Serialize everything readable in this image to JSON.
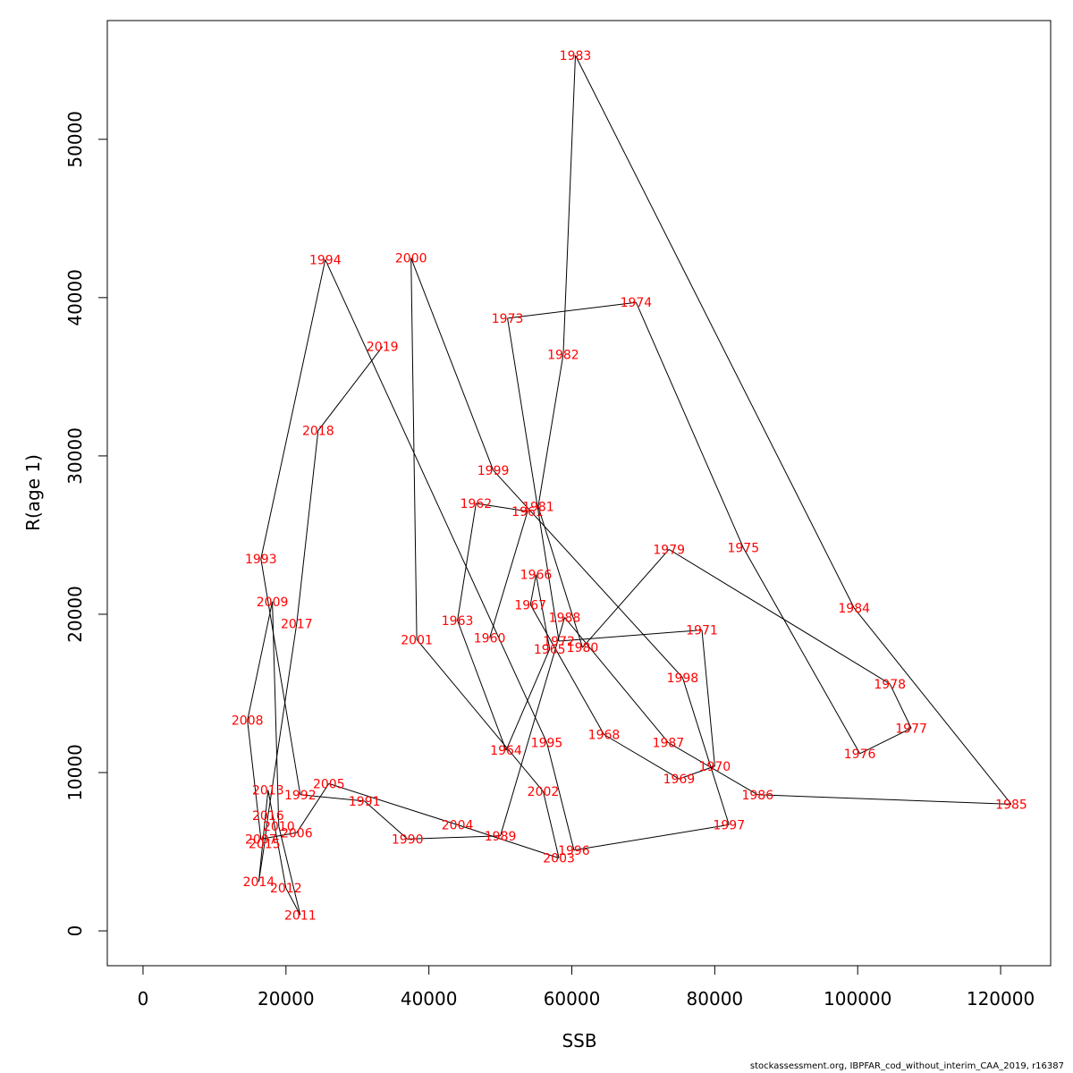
{
  "chart_data": {
    "type": "line",
    "title": "",
    "xlabel": "SSB",
    "ylabel": "R(age 1)",
    "xlim": [
      -5000,
      127000
    ],
    "ylim": [
      -2200,
      57500
    ],
    "xticks": [
      0,
      20000,
      40000,
      60000,
      80000,
      100000,
      120000
    ],
    "yticks": [
      0,
      10000,
      20000,
      30000,
      40000,
      50000
    ],
    "grid": false,
    "legend": "none",
    "colors": {
      "line": "#000000",
      "labels": "#ff0000"
    },
    "points": [
      {
        "year": "1960",
        "x": 48500,
        "y": 18500
      },
      {
        "year": "1961",
        "x": 53800,
        "y": 26500
      },
      {
        "year": "1962",
        "x": 46600,
        "y": 27000
      },
      {
        "year": "1963",
        "x": 44000,
        "y": 19600
      },
      {
        "year": "1964",
        "x": 50800,
        "y": 11400
      },
      {
        "year": "1965",
        "x": 56900,
        "y": 17800
      },
      {
        "year": "1966",
        "x": 55000,
        "y": 22500
      },
      {
        "year": "1967",
        "x": 54200,
        "y": 20600
      },
      {
        "year": "1968",
        "x": 64500,
        "y": 12400
      },
      {
        "year": "1969",
        "x": 75000,
        "y": 9600
      },
      {
        "year": "1970",
        "x": 80000,
        "y": 10400
      },
      {
        "year": "1971",
        "x": 78200,
        "y": 19000
      },
      {
        "year": "1972",
        "x": 58200,
        "y": 18300
      },
      {
        "year": "1973",
        "x": 51000,
        "y": 38700
      },
      {
        "year": "1974",
        "x": 69000,
        "y": 39700
      },
      {
        "year": "1975",
        "x": 84000,
        "y": 24200
      },
      {
        "year": "1976",
        "x": 100300,
        "y": 11200
      },
      {
        "year": "1977",
        "x": 107500,
        "y": 12800
      },
      {
        "year": "1978",
        "x": 104500,
        "y": 15600
      },
      {
        "year": "1979",
        "x": 73600,
        "y": 24100
      },
      {
        "year": "1980",
        "x": 61500,
        "y": 17900
      },
      {
        "year": "1981",
        "x": 55300,
        "y": 26800
      },
      {
        "year": "1982",
        "x": 58800,
        "y": 36400
      },
      {
        "year": "1983",
        "x": 60500,
        "y": 55300
      },
      {
        "year": "1984",
        "x": 99500,
        "y": 20400
      },
      {
        "year": "1985",
        "x": 121500,
        "y": 8000
      },
      {
        "year": "1986",
        "x": 86000,
        "y": 8600
      },
      {
        "year": "1987",
        "x": 73500,
        "y": 11900
      },
      {
        "year": "1988",
        "x": 59000,
        "y": 19800
      },
      {
        "year": "1989",
        "x": 50000,
        "y": 6000
      },
      {
        "year": "1990",
        "x": 37000,
        "y": 5800
      },
      {
        "year": "1991",
        "x": 31000,
        "y": 8200
      },
      {
        "year": "1992",
        "x": 22000,
        "y": 8600
      },
      {
        "year": "1993",
        "x": 16500,
        "y": 23500
      },
      {
        "year": "1994",
        "x": 25500,
        "y": 42400
      },
      {
        "year": "1995",
        "x": 56500,
        "y": 11900
      },
      {
        "year": "1996",
        "x": 60300,
        "y": 5100
      },
      {
        "year": "1997",
        "x": 82000,
        "y": 6700
      },
      {
        "year": "1998",
        "x": 75500,
        "y": 16000
      },
      {
        "year": "1999",
        "x": 49000,
        "y": 29100
      },
      {
        "year": "2000",
        "x": 37500,
        "y": 42500
      },
      {
        "year": "2001",
        "x": 38300,
        "y": 18400
      },
      {
        "year": "2002",
        "x": 56000,
        "y": 8800
      },
      {
        "year": "2003",
        "x": 58200,
        "y": 4600
      },
      {
        "year": "2004",
        "x": 44000,
        "y": 6700
      },
      {
        "year": "2005",
        "x": 26000,
        "y": 9300
      },
      {
        "year": "2006",
        "x": 21500,
        "y": 6200
      },
      {
        "year": "2007",
        "x": 16500,
        "y": 5800
      },
      {
        "year": "2008",
        "x": 14600,
        "y": 13300
      },
      {
        "year": "2009",
        "x": 18100,
        "y": 20800
      },
      {
        "year": "2010",
        "x": 19000,
        "y": 6600
      },
      {
        "year": "2011",
        "x": 22000,
        "y": 1000
      },
      {
        "year": "2012",
        "x": 20000,
        "y": 2700
      },
      {
        "year": "2013",
        "x": 17500,
        "y": 8900
      },
      {
        "year": "2014",
        "x": 16200,
        "y": 3100
      },
      {
        "year": "2015",
        "x": 17000,
        "y": 5500
      },
      {
        "year": "2016",
        "x": 17500,
        "y": 7300
      },
      {
        "year": "2017",
        "x": 21500,
        "y": 19400
      },
      {
        "year": "2018",
        "x": 24500,
        "y": 31600
      },
      {
        "year": "2019",
        "x": 33500,
        "y": 36900
      }
    ]
  },
  "footer": {
    "source_note": "stockassessment.org, IBPFAR_cod_without_interim_CAA_2019, r16387"
  }
}
